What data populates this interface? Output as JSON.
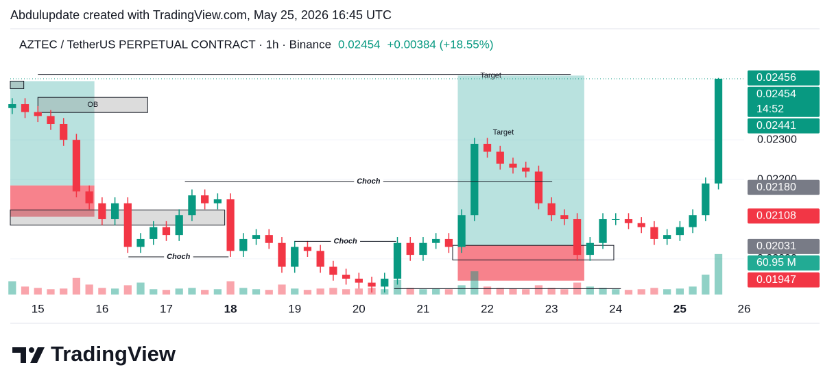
{
  "chart_data": {
    "type": "candlestick",
    "caption": "Abdulupdate created with TradingView.com, May 25, 2026 16:45 UTC",
    "title": "AZTEC / TetherUS PERPETUAL CONTRACT · 1h · Binance",
    "last_price": 0.02454,
    "change": "+0.00384 (+18.55%)",
    "brand": "TradingView",
    "up_color": "#089981",
    "down_color": "#f23645",
    "xlim": [
      14.57,
      26.0
    ],
    "xticks": [
      15,
      16,
      17,
      18,
      19,
      20,
      21,
      22,
      23,
      24,
      25,
      26
    ],
    "xticks_bold": [
      18,
      25
    ],
    "ylim": [
      0.0191,
      0.0258
    ],
    "yticks": [
      {
        "value": 0.02,
        "label": "0.02000"
      },
      {
        "value": 0.022,
        "label": "0.02200"
      },
      {
        "value": 0.023,
        "label": "0.02300"
      }
    ],
    "volume_lim": [
      0,
      400
    ],
    "x": [
      14.6,
      14.8,
      15.0,
      15.2,
      15.4,
      15.6,
      15.8,
      16.0,
      16.2,
      16.4,
      16.6,
      16.8,
      17.0,
      17.2,
      17.4,
      17.6,
      17.8,
      18.0,
      18.2,
      18.4,
      18.6,
      18.8,
      19.0,
      19.2,
      19.4,
      19.6,
      19.8,
      20.0,
      20.2,
      20.4,
      20.6,
      20.8,
      21.0,
      21.2,
      21.4,
      21.6,
      21.8,
      22.0,
      22.2,
      22.4,
      22.6,
      22.8,
      23.0,
      23.2,
      23.4,
      23.6,
      23.8,
      24.0,
      24.2,
      24.4,
      24.6,
      24.8,
      25.0,
      25.2,
      25.4,
      25.6
    ],
    "open": [
      0.0238,
      0.0239,
      0.0237,
      0.0236,
      0.0234,
      0.023,
      0.0217,
      0.0214,
      0.021,
      0.0214,
      0.0203,
      0.0205,
      0.0208,
      0.0206,
      0.0211,
      0.0216,
      0.0214,
      0.0215,
      0.0202,
      0.0205,
      0.0206,
      0.0204,
      0.0198,
      0.0203,
      0.0202,
      0.0198,
      0.0196,
      0.0195,
      0.0194,
      0.0193,
      0.0195,
      0.0204,
      0.0201,
      0.0204,
      0.0205,
      0.0203,
      0.0211,
      0.0229,
      0.0227,
      0.0224,
      0.0223,
      0.0222,
      0.0214,
      0.0211,
      0.021,
      0.0201,
      0.0204,
      0.021,
      0.021,
      0.0209,
      0.0208,
      0.0205,
      0.0206,
      0.0208,
      0.0211,
      0.0219
    ],
    "high": [
      0.02405,
      0.02405,
      0.02385,
      0.02375,
      0.02355,
      0.02315,
      0.02185,
      0.02155,
      0.02155,
      0.02155,
      0.02065,
      0.02095,
      0.02095,
      0.02125,
      0.02175,
      0.02175,
      0.02165,
      0.02165,
      0.02065,
      0.02075,
      0.02075,
      0.02055,
      0.02045,
      0.02045,
      0.02035,
      0.01995,
      0.01975,
      0.01965,
      0.01955,
      0.01965,
      0.02055,
      0.02055,
      0.02055,
      0.02065,
      0.02065,
      0.02125,
      0.02305,
      0.02305,
      0.02285,
      0.02255,
      0.02245,
      0.02235,
      0.02155,
      0.02125,
      0.02115,
      0.02055,
      0.02115,
      0.02115,
      0.02115,
      0.02105,
      0.02095,
      0.02075,
      0.02095,
      0.02125,
      0.02205,
      0.02456
    ],
    "low": [
      0.02365,
      0.02355,
      0.02345,
      0.02325,
      0.02285,
      0.02155,
      0.02125,
      0.02085,
      0.02085,
      0.02015,
      0.02015,
      0.02035,
      0.02045,
      0.02045,
      0.02095,
      0.02125,
      0.02125,
      0.02005,
      0.02005,
      0.02035,
      0.02025,
      0.01965,
      0.01965,
      0.02005,
      0.01965,
      0.01945,
      0.01935,
      0.01925,
      0.01915,
      0.01915,
      0.01935,
      0.01995,
      0.01995,
      0.02025,
      0.02015,
      0.02015,
      0.02095,
      0.02255,
      0.02225,
      0.02215,
      0.02205,
      0.02125,
      0.02095,
      0.02085,
      0.01995,
      0.01995,
      0.02025,
      0.02085,
      0.02075,
      0.02065,
      0.02035,
      0.02035,
      0.02045,
      0.02065,
      0.02095,
      0.02175
    ],
    "close": [
      0.0239,
      0.0237,
      0.0236,
      0.0234,
      0.023,
      0.0217,
      0.0214,
      0.021,
      0.0214,
      0.0203,
      0.0205,
      0.0208,
      0.0206,
      0.0211,
      0.0216,
      0.0214,
      0.0215,
      0.0202,
      0.0205,
      0.0206,
      0.0204,
      0.0198,
      0.0203,
      0.0202,
      0.0198,
      0.0196,
      0.0195,
      0.0194,
      0.0193,
      0.0195,
      0.0204,
      0.0201,
      0.0204,
      0.0205,
      0.0203,
      0.0211,
      0.0229,
      0.0227,
      0.0224,
      0.0223,
      0.0222,
      0.0214,
      0.0211,
      0.021,
      0.0201,
      0.0204,
      0.021,
      0.021,
      0.0209,
      0.0208,
      0.0205,
      0.0206,
      0.0208,
      0.0211,
      0.0219,
      0.02454
    ],
    "volume": [
      20,
      12,
      10,
      8,
      9,
      25,
      15,
      10,
      9,
      14,
      18,
      8,
      7,
      9,
      10,
      7,
      8,
      20,
      10,
      8,
      7,
      15,
      9,
      7,
      9,
      10,
      8,
      9,
      10,
      8,
      22,
      10,
      8,
      9,
      8,
      14,
      35,
      12,
      10,
      9,
      8,
      14,
      10,
      8,
      18,
      12,
      10,
      8,
      7,
      8,
      10,
      8,
      9,
      12,
      30,
      60.95
    ],
    "price_labels": [
      {
        "value": 0.02456,
        "label": "0.02456",
        "color": "#089981"
      },
      {
        "value": 0.02454,
        "label": "0.02454",
        "sublabel": "14:52",
        "color": "#089981"
      },
      {
        "value": 0.02441,
        "label": "0.02441",
        "color": "#089981"
      },
      {
        "value": 0.0218,
        "label": "0.02180",
        "color": "#787b86"
      },
      {
        "value": 0.02108,
        "label": "0.02108",
        "color": "#f23645"
      },
      {
        "value": 0.02031,
        "label": "0.02031",
        "color": "#787b86"
      },
      {
        "value": 0.01947,
        "label": "0.01947",
        "color": "#f23645"
      }
    ],
    "volume_label": {
      "value": 60.95,
      "label": "60.95 M",
      "color": "#22ab94"
    },
    "annotations": [
      {
        "kind": "rect",
        "x": [
          14.57,
          15.88
        ],
        "y": [
          0.02185,
          0.02448
        ],
        "color": "rgba(38,166,154,0.32)"
      },
      {
        "kind": "rect",
        "x": [
          14.57,
          15.88
        ],
        "y": [
          0.02106,
          0.02185
        ],
        "color": "rgba(242,54,69,0.62)"
      },
      {
        "kind": "rect",
        "x": [
          15.0,
          16.71
        ],
        "y": [
          0.02369,
          0.02407
        ],
        "color": "rgba(140,140,140,0.3)",
        "border": "#131722",
        "label": "OB"
      },
      {
        "kind": "rect",
        "x": [
          14.57,
          14.78
        ],
        "y": [
          0.02429,
          0.02448
        ],
        "color": "rgba(140,140,140,0.3)",
        "border": "#131722"
      },
      {
        "kind": "rect",
        "x": [
          14.57,
          17.91
        ],
        "y": [
          0.02085,
          0.02123
        ],
        "color": "rgba(140,140,140,0.3)",
        "border": "#131722"
      },
      {
        "kind": "rect",
        "x": [
          21.54,
          23.51
        ],
        "y": [
          0.02034,
          0.02462
        ],
        "color": "rgba(38,166,154,0.32)"
      },
      {
        "kind": "rect",
        "x": [
          21.54,
          23.51
        ],
        "y": [
          0.01945,
          0.02034
        ],
        "color": "rgba(242,54,69,0.62)"
      },
      {
        "kind": "rect",
        "x": [
          21.46,
          23.97
        ],
        "y": [
          0.01997,
          0.02034
        ],
        "color": "rgba(0,0,0,0)",
        "border": "#131722"
      },
      {
        "kind": "line",
        "x": [
          15.0,
          23.3
        ],
        "y": 0.02465,
        "label": "Target"
      },
      {
        "kind": "line",
        "x": [
          17.29,
          23.01
        ],
        "y": 0.02195,
        "label": "Choch",
        "style": "choch"
      },
      {
        "kind": "line",
        "x": [
          16.41,
          17.97
        ],
        "y": 0.02005,
        "label": "Choch",
        "style": "choch"
      },
      {
        "kind": "line",
        "x": [
          19.0,
          20.58
        ],
        "y": 0.02044,
        "label": "Choch",
        "style": "choch"
      },
      {
        "kind": "line",
        "x": [
          20.55,
          24.08
        ],
        "y": 0.01925
      },
      {
        "kind": "text",
        "x": 22.25,
        "y": 0.02318,
        "label": "Target"
      }
    ]
  }
}
